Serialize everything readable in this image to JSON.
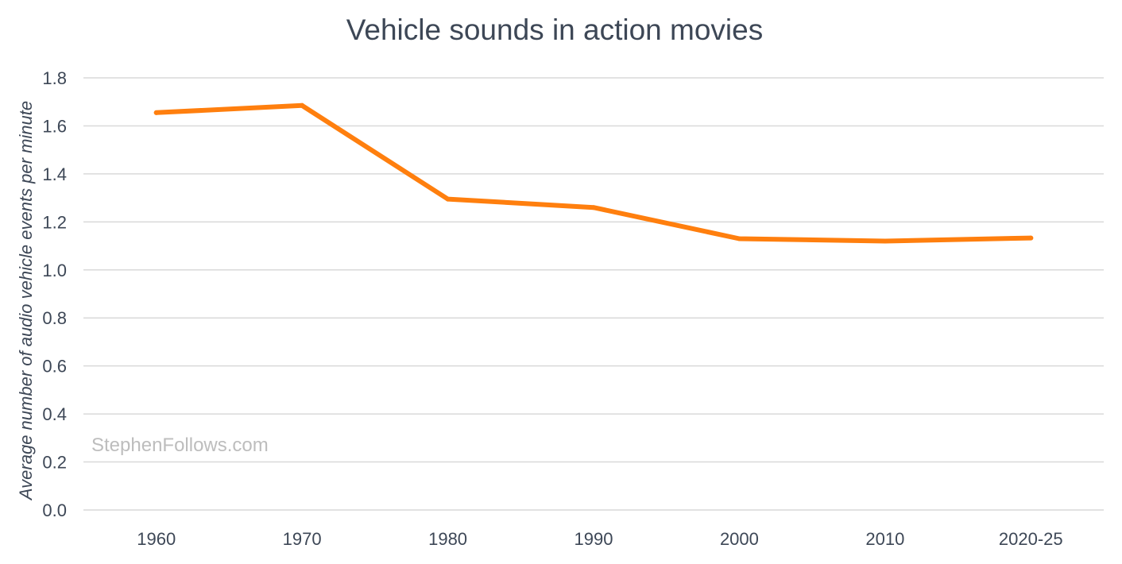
{
  "chart_data": {
    "type": "line",
    "title": "Vehicle sounds in action movies",
    "xlabel": "",
    "ylabel": "Average number of audio vehicle events per minute",
    "categories": [
      "1960",
      "1970",
      "1980",
      "1990",
      "2000",
      "2010",
      "2020-25"
    ],
    "series": [
      {
        "name": "Vehicle sounds",
        "values": [
          1.655,
          1.685,
          1.295,
          1.26,
          1.13,
          1.12,
          1.133
        ],
        "color": "#ff7f0e"
      }
    ],
    "ylim": [
      0,
      1.8
    ],
    "yticks": [
      "0.0",
      "0.2",
      "0.4",
      "0.6",
      "0.8",
      "1.0",
      "1.2",
      "1.4",
      "1.6",
      "1.8"
    ],
    "grid": true,
    "watermark": "StephenFollows.com"
  }
}
